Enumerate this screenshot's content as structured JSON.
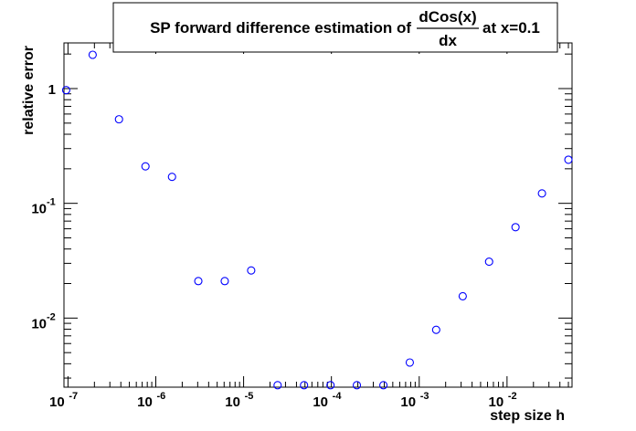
{
  "chart_data": {
    "type": "scatter",
    "title": {
      "prefix": "SP forward difference estimation of",
      "numerator": "dCos(x)",
      "denominator": "dx",
      "suffix": "at x=0.1"
    },
    "xlabel": "step size h",
    "ylabel": "relative error",
    "xscale": "log",
    "yscale": "log",
    "xlim": [
      9e-08,
      0.055
    ],
    "ylim": [
      0.0025,
      2.5
    ],
    "grid": false,
    "marker_color": "#0000ff",
    "x_ticks": [
      {
        "value": 1e-07,
        "base": "10",
        "exp": "-7"
      },
      {
        "value": 1e-06,
        "base": "10",
        "exp": "-6"
      },
      {
        "value": 1e-05,
        "base": "10",
        "exp": "-5"
      },
      {
        "value": 0.0001,
        "base": "10",
        "exp": "-4"
      },
      {
        "value": 0.001,
        "base": "10",
        "exp": "-3"
      },
      {
        "value": 0.01,
        "base": "10",
        "exp": "-2"
      }
    ],
    "y_ticks": [
      {
        "value": 1,
        "base": "1",
        "exp": ""
      },
      {
        "value": 0.1,
        "base": "10",
        "exp": "-1"
      },
      {
        "value": 0.01,
        "base": "10",
        "exp": "-2"
      }
    ],
    "series": [
      {
        "x": [
          9.54e-08,
          1.91e-07,
          3.81e-07,
          7.63e-07,
          1.53e-06,
          3.05e-06,
          6.1e-06,
          1.22e-05,
          2.44e-05,
          4.88e-05,
          9.77e-05,
          0.000195,
          0.000391,
          0.000781,
          0.00156,
          0.00313,
          0.00625,
          0.0125,
          0.025,
          0.05
        ],
        "y": [
          0.97,
          1.97,
          0.54,
          0.21,
          0.17,
          0.021,
          0.021,
          0.026,
          0.0026,
          0.0026,
          0.0026,
          0.0026,
          0.0026,
          0.0041,
          0.0079,
          0.0155,
          0.031,
          0.062,
          0.122,
          0.24
        ]
      }
    ]
  }
}
